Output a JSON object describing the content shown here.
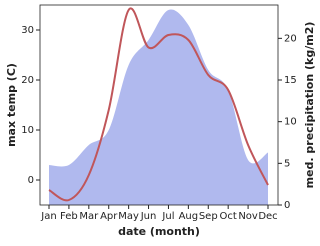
{
  "chart_data": {
    "type": "line",
    "categories": [
      "Jan",
      "Feb",
      "Mar",
      "Apr",
      "May",
      "Jun",
      "Jul",
      "Aug",
      "Sep",
      "Oct",
      "Nov",
      "Dec"
    ],
    "x_label": "date (month)",
    "y_label": "max temp (C)",
    "y2_label": "med. precipitation (kg/m2)",
    "ylim": [
      -5,
      35
    ],
    "yticks": [
      0,
      10,
      20,
      30
    ],
    "y2lim": [
      0,
      24
    ],
    "y2ticks": [
      0,
      5,
      10,
      15,
      20
    ],
    "series": [
      {
        "name": "med. precipitation",
        "type": "area",
        "axis": "y2",
        "color": "#b0b9ee",
        "values": [
          4.8,
          4.8,
          7.2,
          9,
          16.8,
          19.8,
          23.4,
          21.6,
          16.2,
          13.8,
          5.4,
          6.3
        ]
      },
      {
        "name": "max temp",
        "type": "line",
        "axis": "y",
        "color": "#c0565a",
        "values": [
          -2,
          -4,
          1,
          14,
          34,
          26.5,
          29,
          28,
          21,
          18,
          7,
          -1
        ]
      }
    ]
  }
}
